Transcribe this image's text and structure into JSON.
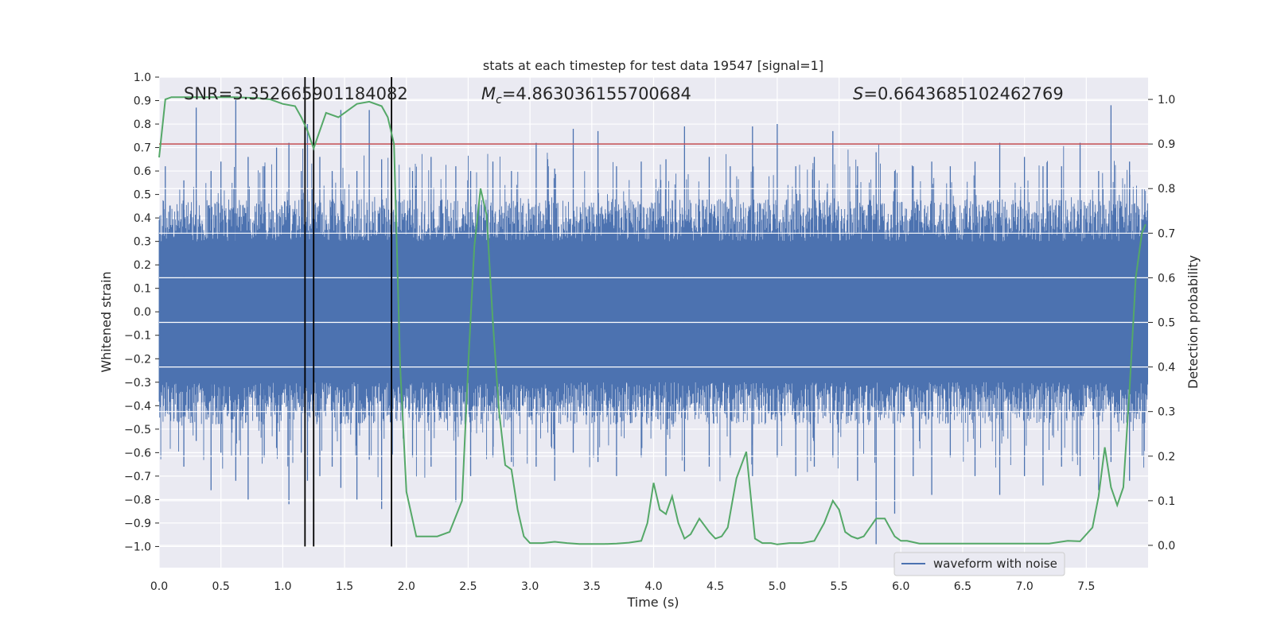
{
  "chart_data": {
    "type": "line",
    "title": "stats at each timestep for test data 19547 [signal=1]",
    "xlabel": "Time (s)",
    "ylabel_left": "Whitened strain",
    "ylabel_right": "Detection probability",
    "xlim": [
      0.0,
      8.0
    ],
    "ylim_left": [
      -1.09,
      1.0
    ],
    "ylim_right": [
      -0.05,
      1.05
    ],
    "x_ticks": [
      0.0,
      0.5,
      1.0,
      1.5,
      2.0,
      2.5,
      3.0,
      3.5,
      4.0,
      4.5,
      5.0,
      5.5,
      6.0,
      6.5,
      7.0,
      7.5
    ],
    "x_tick_labels": [
      "0.0",
      "0.5",
      "1.0",
      "1.5",
      "2.0",
      "2.5",
      "3.0",
      "3.5",
      "4.0",
      "4.5",
      "5.0",
      "5.5",
      "6.0",
      "6.5",
      "7.0",
      "7.5"
    ],
    "left_ticks": [
      1.0,
      0.9,
      0.8,
      0.7,
      0.6,
      0.5,
      0.4,
      0.3,
      0.2,
      0.1,
      0.0,
      -0.1,
      -0.2,
      -0.3,
      -0.4,
      -0.5,
      -0.6,
      -0.7,
      -0.8,
      -0.9,
      -1.0
    ],
    "left_tick_labels": [
      "1.0",
      "0.9",
      "0.8",
      "0.7",
      "0.6",
      "0.5",
      "0.4",
      "0.3",
      "0.2",
      "0.1",
      "0.0",
      "−0.1",
      "−0.2",
      "−0.3",
      "−0.4",
      "−0.5",
      "−0.6",
      "−0.7",
      "−0.8",
      "−0.9",
      "−1.0"
    ],
    "right_ticks": [
      1.0,
      0.9,
      0.8,
      0.7,
      0.6,
      0.5,
      0.4,
      0.3,
      0.2,
      0.1,
      0.0
    ],
    "right_tick_labels": [
      "1.0",
      "0.9",
      "0.8",
      "0.7",
      "0.6",
      "0.5",
      "0.4",
      "0.3",
      "0.2",
      "0.1",
      "0.0"
    ],
    "annotations": {
      "snr": "SNR=3.352665901184082",
      "mc": "=4.863036155700684",
      "mc_symbol": "M",
      "mc_sub": "c",
      "s": "=0.6643685102462769",
      "s_symbol": "S"
    },
    "threshold": {
      "value": 0.9,
      "axis": "right",
      "color": "#c44e52"
    },
    "event_lines": [
      1.18,
      1.25,
      1.88
    ],
    "event_line_range": [
      -1.0,
      1.0
    ],
    "waveform": {
      "name": "waveform with noise",
      "color": "#4c72b0",
      "x_range": [
        0.0,
        8.0
      ],
      "core_amplitude": 0.3,
      "peaks": [
        {
          "x": 0.05,
          "hi": 0.62,
          "lo": -0.42
        },
        {
          "x": 0.2,
          "hi": 0.56,
          "lo": -0.66
        },
        {
          "x": 0.3,
          "hi": 0.87,
          "lo": -0.55
        },
        {
          "x": 0.42,
          "hi": 0.6,
          "lo": -0.76
        },
        {
          "x": 0.5,
          "hi": 0.64,
          "lo": -0.6
        },
        {
          "x": 0.62,
          "hi": 0.91,
          "lo": -0.72
        },
        {
          "x": 0.72,
          "hi": 0.66,
          "lo": -0.8
        },
        {
          "x": 0.85,
          "hi": 0.62,
          "lo": -0.62
        },
        {
          "x": 0.95,
          "hi": 0.7,
          "lo": -0.58
        },
        {
          "x": 1.05,
          "hi": 0.72,
          "lo": -0.82
        },
        {
          "x": 1.15,
          "hi": 0.6,
          "lo": -0.6
        },
        {
          "x": 1.2,
          "hi": 0.8,
          "lo": -0.72
        },
        {
          "x": 1.3,
          "hi": 0.66,
          "lo": -0.7
        },
        {
          "x": 1.4,
          "hi": 0.6,
          "lo": -0.66
        },
        {
          "x": 1.47,
          "hi": 0.86,
          "lo": -0.75
        },
        {
          "x": 1.6,
          "hi": 0.6,
          "lo": -0.8
        },
        {
          "x": 1.7,
          "hi": 0.86,
          "lo": -0.63
        },
        {
          "x": 1.8,
          "hi": 0.65,
          "lo": -0.84
        },
        {
          "x": 1.88,
          "hi": 0.77,
          "lo": -0.72
        },
        {
          "x": 2.05,
          "hi": 0.6,
          "lo": -0.62
        },
        {
          "x": 2.2,
          "hi": 0.66,
          "lo": -0.66
        },
        {
          "x": 2.4,
          "hi": 0.62,
          "lo": -0.81
        },
        {
          "x": 2.52,
          "hi": 0.6,
          "lo": -0.7
        },
        {
          "x": 2.7,
          "hi": 0.64,
          "lo": -0.62
        },
        {
          "x": 2.85,
          "hi": 0.6,
          "lo": -0.64
        },
        {
          "x": 3.05,
          "hi": 0.72,
          "lo": -0.66
        },
        {
          "x": 3.2,
          "hi": 0.61,
          "lo": -0.72
        },
        {
          "x": 3.35,
          "hi": 0.78,
          "lo": -0.6
        },
        {
          "x": 3.55,
          "hi": 0.77,
          "lo": -0.64
        },
        {
          "x": 3.7,
          "hi": 0.62,
          "lo": -0.7
        },
        {
          "x": 3.9,
          "hi": 0.64,
          "lo": -0.62
        },
        {
          "x": 4.1,
          "hi": 0.65,
          "lo": -0.7
        },
        {
          "x": 4.25,
          "hi": 0.79,
          "lo": -0.68
        },
        {
          "x": 4.45,
          "hi": 0.66,
          "lo": -0.66
        },
        {
          "x": 4.62,
          "hi": 0.62,
          "lo": -0.62
        },
        {
          "x": 4.8,
          "hi": 0.79,
          "lo": -0.7
        },
        {
          "x": 5.0,
          "hi": 0.8,
          "lo": -0.62
        },
        {
          "x": 5.15,
          "hi": 0.62,
          "lo": -0.7
        },
        {
          "x": 5.3,
          "hi": 0.66,
          "lo": -0.66
        },
        {
          "x": 5.45,
          "hi": 0.77,
          "lo": -0.62
        },
        {
          "x": 5.65,
          "hi": 0.62,
          "lo": -0.72
        },
        {
          "x": 5.8,
          "hi": 0.68,
          "lo": -0.99
        },
        {
          "x": 5.95,
          "hi": 0.6,
          "lo": -0.86
        },
        {
          "x": 6.1,
          "hi": 0.62,
          "lo": -0.7
        },
        {
          "x": 6.25,
          "hi": 0.64,
          "lo": -0.78
        },
        {
          "x": 6.4,
          "hi": 0.62,
          "lo": -0.62
        },
        {
          "x": 6.6,
          "hi": 0.64,
          "lo": -0.7
        },
        {
          "x": 6.8,
          "hi": 0.72,
          "lo": -0.78
        },
        {
          "x": 7.0,
          "hi": 0.66,
          "lo": -0.7
        },
        {
          "x": 7.15,
          "hi": 0.62,
          "lo": -0.74
        },
        {
          "x": 7.3,
          "hi": 0.62,
          "lo": -0.66
        },
        {
          "x": 7.45,
          "hi": 0.72,
          "lo": -0.7
        },
        {
          "x": 7.6,
          "hi": 0.6,
          "lo": -0.76
        },
        {
          "x": 7.7,
          "hi": 0.88,
          "lo": -0.64
        },
        {
          "x": 7.85,
          "hi": 0.64,
          "lo": -0.72
        }
      ]
    },
    "probability": {
      "color": "#55a868",
      "x": [
        0.0,
        0.05,
        0.1,
        0.2,
        0.3,
        0.4,
        0.5,
        0.6,
        0.7,
        0.8,
        0.9,
        1.0,
        1.1,
        1.15,
        1.2,
        1.25,
        1.35,
        1.45,
        1.5,
        1.55,
        1.6,
        1.7,
        1.8,
        1.85,
        1.9,
        1.95,
        2.0,
        2.08,
        2.15,
        2.25,
        2.35,
        2.45,
        2.5,
        2.55,
        2.6,
        2.65,
        2.7,
        2.75,
        2.8,
        2.85,
        2.9,
        2.95,
        3.0,
        3.1,
        3.2,
        3.3,
        3.4,
        3.5,
        3.6,
        3.7,
        3.8,
        3.9,
        3.95,
        4.0,
        4.05,
        4.1,
        4.15,
        4.2,
        4.25,
        4.3,
        4.37,
        4.45,
        4.5,
        4.55,
        4.6,
        4.67,
        4.75,
        4.82,
        4.88,
        4.95,
        5.0,
        5.1,
        5.2,
        5.3,
        5.38,
        5.45,
        5.5,
        5.55,
        5.6,
        5.65,
        5.7,
        5.8,
        5.87,
        5.95,
        6.0,
        6.05,
        6.15,
        6.25,
        6.4,
        6.6,
        6.8,
        7.0,
        7.2,
        7.35,
        7.45,
        7.55,
        7.6,
        7.65,
        7.7,
        7.75,
        7.8,
        7.85,
        7.9,
        7.95,
        7.98
      ],
      "y": [
        0.87,
        1.0,
        1.005,
        1.005,
        1.005,
        1.005,
        1.005,
        1.005,
        1.004,
        1.003,
        1.0,
        0.99,
        0.985,
        0.96,
        0.93,
        0.89,
        0.97,
        0.96,
        0.97,
        0.98,
        0.99,
        0.995,
        0.985,
        0.96,
        0.9,
        0.4,
        0.12,
        0.02,
        0.02,
        0.02,
        0.03,
        0.1,
        0.4,
        0.67,
        0.8,
        0.74,
        0.5,
        0.3,
        0.18,
        0.17,
        0.08,
        0.02,
        0.005,
        0.005,
        0.008,
        0.005,
        0.003,
        0.003,
        0.003,
        0.004,
        0.006,
        0.01,
        0.05,
        0.14,
        0.08,
        0.07,
        0.11,
        0.05,
        0.015,
        0.025,
        0.06,
        0.03,
        0.015,
        0.02,
        0.04,
        0.15,
        0.21,
        0.015,
        0.005,
        0.005,
        0.002,
        0.005,
        0.005,
        0.01,
        0.05,
        0.1,
        0.08,
        0.03,
        0.02,
        0.015,
        0.02,
        0.06,
        0.06,
        0.02,
        0.01,
        0.01,
        0.004,
        0.004,
        0.004,
        0.004,
        0.004,
        0.004,
        0.004,
        0.01,
        0.009,
        0.04,
        0.11,
        0.22,
        0.13,
        0.09,
        0.13,
        0.35,
        0.6,
        0.7,
        0.72
      ]
    },
    "legend": {
      "entries": [
        "waveform with noise"
      ],
      "position": "lower-right"
    }
  }
}
